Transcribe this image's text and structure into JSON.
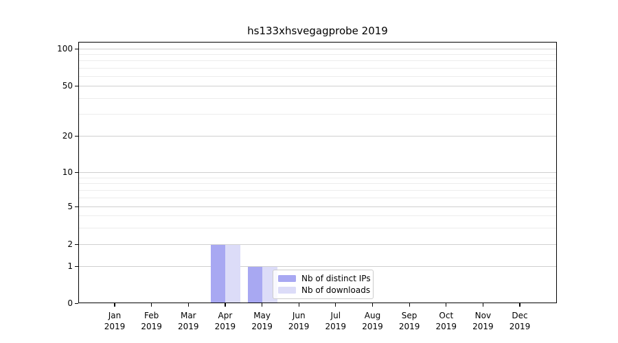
{
  "chart_data": {
    "type": "bar",
    "title": "hs133xhsvegagprobe 2019",
    "year": "2019",
    "categories": [
      "Jan",
      "Feb",
      "Mar",
      "Apr",
      "May",
      "Jun",
      "Jul",
      "Aug",
      "Sep",
      "Oct",
      "Nov",
      "Dec"
    ],
    "series": [
      {
        "name": "Nb of distinct IPs",
        "color": "#a8a8f2",
        "values": [
          0,
          0,
          0,
          2,
          1,
          0,
          0,
          0,
          0,
          0,
          0,
          0
        ]
      },
      {
        "name": "Nb of downloads",
        "color": "#dcdcf8",
        "values": [
          0,
          0,
          0,
          2,
          1,
          0,
          0,
          0,
          0,
          0,
          0,
          0
        ]
      }
    ],
    "y_axis": {
      "scale": "symlog",
      "ticks": [
        0,
        1,
        2,
        5,
        10,
        20,
        50,
        100
      ],
      "minor_gridlines": [
        3,
        4,
        6,
        7,
        8,
        9,
        30,
        40,
        60,
        70,
        80,
        90
      ],
      "range": [
        0,
        110
      ]
    },
    "grid": true,
    "legend_position": "lower-center",
    "colors": {
      "axis": "#000000",
      "grid_major": "#cfcfcf",
      "grid_minor": "#ececec",
      "background": "#ffffff"
    }
  }
}
